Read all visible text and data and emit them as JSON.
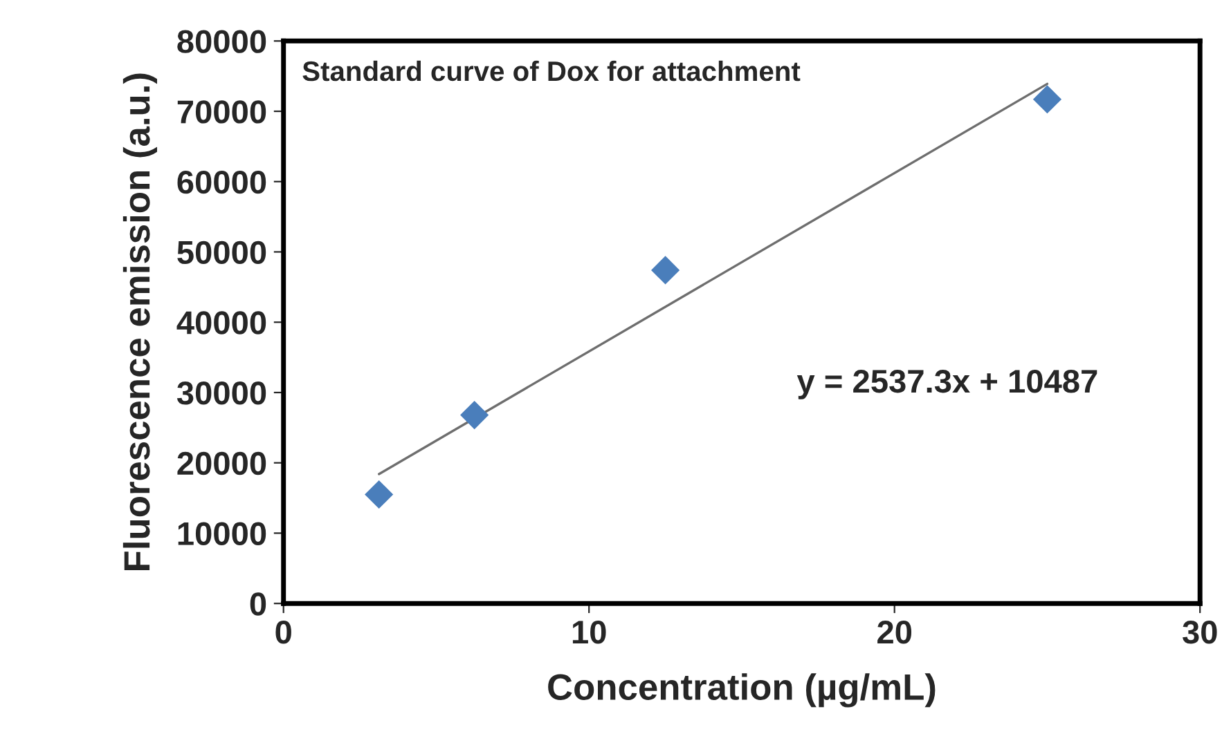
{
  "chart_data": {
    "type": "scatter",
    "title": "Standard curve of Dox for attachment",
    "xlabel": "Concentration (µg/mL)",
    "ylabel": "Fluorescence emission (a.u.)",
    "xlim": [
      0,
      30
    ],
    "xticks": [
      0,
      10,
      20,
      30
    ],
    "ylim": [
      0,
      80000
    ],
    "yticks": [
      0,
      10000,
      20000,
      30000,
      40000,
      50000,
      60000,
      70000,
      80000
    ],
    "grid": false,
    "legend": false,
    "marker": "diamond",
    "series": [
      {
        "color": "#4a7ebb",
        "x": [
          3.125,
          6.25,
          12.5,
          25
        ],
        "values": [
          15500,
          26800,
          47400,
          71700
        ]
      },
      {
        "type": "line",
        "color": "#6e6e6e",
        "marker": "none",
        "line_style": "solid",
        "x": [
          3.125,
          25
        ],
        "values": [
          18400,
          73900
        ]
      }
    ],
    "annotations": [
      "y = 2537.3x + 10487"
    ]
  }
}
